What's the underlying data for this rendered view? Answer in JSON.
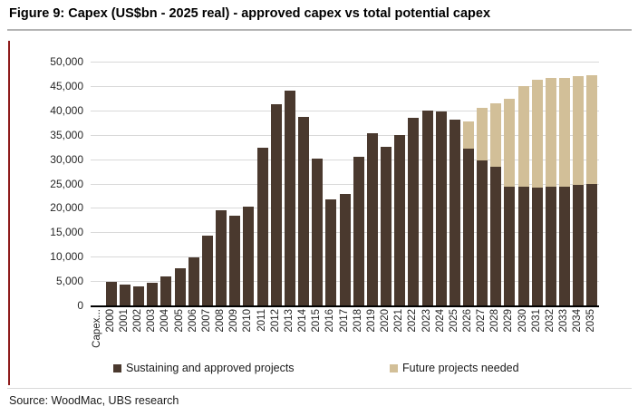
{
  "figure": {
    "title": "Figure 9: Capex (US$bn - 2025 real) - approved capex vs total potential capex",
    "source": "Source: WoodMac, UBS research"
  },
  "colors": {
    "sustaining": "#4a392e",
    "future": "#d2bf98",
    "gridline": "#d9d9d9",
    "axis": "#000000",
    "accent_bar": "#8e1b1b"
  },
  "chart_data": {
    "type": "bar",
    "stacked": true,
    "title": "Capex (US$bn - 2025 real) - approved capex vs total potential capex",
    "xlabel": "",
    "ylabel": "",
    "ylim": [
      0,
      50000
    ],
    "ytick_step": 5000,
    "ytick_labels": [
      "0",
      "5,000",
      "10,000",
      "15,000",
      "20,000",
      "25,000",
      "30,000",
      "35,000",
      "40,000",
      "45,000",
      "50,000"
    ],
    "grid": true,
    "legend_position": "bottom",
    "categories": [
      "Capex...",
      "2000",
      "2001",
      "2002",
      "2003",
      "2004",
      "2005",
      "2006",
      "2007",
      "2008",
      "2009",
      "2010",
      "2011",
      "2012",
      "2013",
      "2014",
      "2015",
      "2016",
      "2017",
      "2018",
      "2019",
      "2020",
      "2021",
      "2022",
      "2023",
      "2024",
      "2025",
      "2026",
      "2027",
      "2028",
      "2029",
      "2030",
      "2031",
      "2032",
      "2033",
      "2034",
      "2035"
    ],
    "series": [
      {
        "name": "Sustaining and approved projects",
        "color": "#4a392e",
        "values": [
          0,
          4800,
          4300,
          3900,
          4600,
          6000,
          7600,
          9800,
          14300,
          19600,
          18400,
          20200,
          32300,
          41200,
          44000,
          38600,
          30200,
          21700,
          22800,
          30400,
          35400,
          32500,
          35000,
          38400,
          40000,
          39700,
          38100,
          32200,
          29800,
          28400,
          24400,
          24400,
          24200,
          24400,
          24400,
          24800,
          25000
        ]
      },
      {
        "name": "Future projects needed",
        "color": "#d2bf98",
        "values": [
          0,
          0,
          0,
          0,
          0,
          0,
          0,
          0,
          0,
          0,
          0,
          0,
          0,
          0,
          0,
          0,
          0,
          0,
          0,
          0,
          0,
          0,
          0,
          0,
          0,
          0,
          0,
          5600,
          10700,
          13100,
          17900,
          20500,
          22100,
          22300,
          22300,
          22300,
          22200
        ]
      }
    ]
  }
}
